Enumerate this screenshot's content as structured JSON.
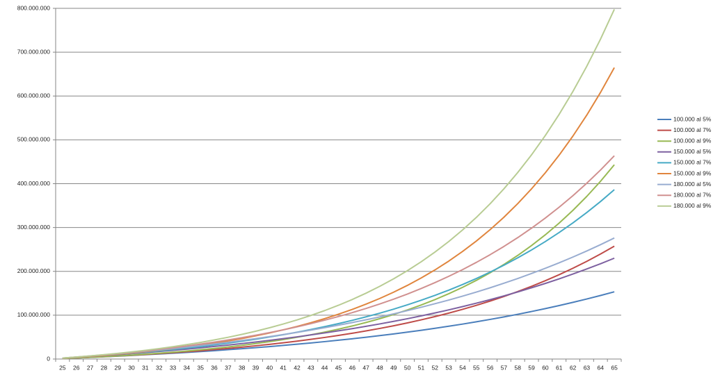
{
  "chart_data": {
    "type": "line",
    "categories": [
      25,
      26,
      27,
      28,
      29,
      30,
      31,
      32,
      33,
      34,
      35,
      36,
      37,
      38,
      39,
      40,
      41,
      42,
      43,
      44,
      45,
      46,
      47,
      48,
      49,
      50,
      51,
      52,
      53,
      54,
      55,
      56,
      57,
      58,
      59,
      60,
      61,
      62,
      63,
      64,
      65
    ],
    "ylim": [
      0,
      800000000
    ],
    "yticks": [
      0,
      {
        "value": 100000000,
        "label": "100.000.000"
      },
      {
        "value": 200000000,
        "label": "200.000.000"
      },
      {
        "value": 300000000,
        "label": "300.000.000"
      },
      {
        "value": 400000000,
        "label": "400.000.000"
      },
      {
        "value": 500000000,
        "label": "500.000.000"
      },
      {
        "value": 600000000,
        "label": "600.000.000"
      },
      {
        "value": 700000000,
        "label": "700.000.000"
      },
      {
        "value": 800000000,
        "label": "800.000.000"
      }
    ],
    "grid": true,
    "legend": "right",
    "series": [
      {
        "name": "100.000 al 5%",
        "color": "#4a7ebb",
        "values": [
          1200000.0,
          2500000.0,
          3800000.0,
          5200000.0,
          6600000.0,
          8200000.0,
          9800000.0,
          11500000.0,
          13200000.0,
          15100000.0,
          17000000.0,
          19100000.0,
          21300000.0,
          23500000.0,
          25900000.0,
          28400000.0,
          31000000.0,
          33800000.0,
          36600000.0,
          39700000.0,
          42900000.0,
          46200000.0,
          49700000.0,
          53400000.0,
          57300000.0,
          61300000.0,
          65600000.0,
          70100000.0,
          74800000.0,
          79700000.0,
          84900000.0,
          90400000.0,
          96100000.0,
          102100000.0,
          108400000.0,
          115000000.0,
          122000000.0,
          129300000.0,
          136900000.0,
          145000000.0,
          153400000.0
        ]
      },
      {
        "name": "100.000 al 7%",
        "color": "#be4b48",
        "values": [
          1200000.0,
          2500000.0,
          3900000.0,
          5300000.0,
          6900000.0,
          8600000.0,
          10400000.0,
          12300000.0,
          14400000.0,
          16600000.0,
          18900000.0,
          21500000.0,
          24200000.0,
          27100000.0,
          30200000.0,
          33500000.0,
          37000000.0,
          40800000.0,
          44900000.0,
          49200000.0,
          53800000.0,
          58800000.0,
          64100000.0,
          69800000.0,
          75900000.0,
          82400000.0,
          89400000.0,
          96800000.0,
          104800000.0,
          113400000.0,
          122500000.0,
          132300000.0,
          142700000.0,
          153900000.0,
          165900000.0,
          178700000.0,
          192400000.0,
          207100000.0,
          222800000.0,
          239600000.0,
          257500000.0
        ]
      },
      {
        "name": "100.000 al 9%",
        "color": "#98b954",
        "values": [
          1200000.0,
          2500000.0,
          3900000.0,
          5500000.0,
          7200000.0,
          9000000.0,
          11000000.0,
          13200000.0,
          15600000.0,
          18200000.0,
          21100000.0,
          24200000.0,
          27500000.0,
          31200000.0,
          35200000.0,
          39600000.0,
          44400000.0,
          49600000.0,
          55200000.0,
          61400000.0,
          68100000.0,
          75400000.0,
          83400000.0,
          92100000.0,
          101600000.0,
          112000000.0,
          123300000.0,
          135600000.0,
          149000000.0,
          163600000.0,
          179500000.0,
          196800000.0,
          215800000.0,
          236400000.0,
          258900000.0,
          283400000.0,
          310100000.0,
          339200000.0,
          370900000.0,
          405500000.0,
          443200000.0
        ]
      },
      {
        "name": "150.000 al 5%",
        "color": "#7d60a0",
        "values": [
          1800000.0,
          3700000.0,
          5700000.0,
          7800000.0,
          9900000.0,
          12200000.0,
          14700000.0,
          17200000.0,
          19800000.0,
          22600000.0,
          25600000.0,
          28700000.0,
          31900000.0,
          35300000.0,
          38800000.0,
          42600000.0,
          46500000.0,
          50600000.0,
          55000000.0,
          59500000.0,
          64300000.0,
          69300000.0,
          74600000.0,
          80100000.0,
          85900000.0,
          92000000.0,
          98400000.0,
          105100000.0,
          112200000.0,
          119600000.0,
          127400000.0,
          135500000.0,
          144100000.0,
          153100000.0,
          162600000.0,
          172500000.0,
          182900000.0,
          193900000.0,
          205400000.0,
          217400000.0,
          230100000.0
        ]
      },
      {
        "name": "150.000 al 7%",
        "color": "#46aac5",
        "values": [
          1800000.0,
          3700000.0,
          5800000.0,
          8000000.0,
          10400000.0,
          12900000.0,
          15600000.0,
          18500000.0,
          21600000.0,
          24900000.0,
          28400000.0,
          32200000.0,
          36300000.0,
          40600000.0,
          45200000.0,
          50200000.0,
          55500000.0,
          61200000.0,
          67300000.0,
          73800000.0,
          80800000.0,
          88200000.0,
          96200000.0,
          104700000.0,
          113800000.0,
          123600000.0,
          134100000.0,
          145300000.0,
          157200000.0,
          170000000.0,
          183700000.0,
          198400000.0,
          214100000.0,
          230900000.0,
          248800000.0,
          268000000.0,
          288600000.0,
          310600000.0,
          334200000.0,
          359300000.0,
          386300000.0
        ]
      },
      {
        "name": "150.000 al 9%",
        "color": "#e0853d",
        "values": [
          1800000.0,
          3800000.0,
          5900000.0,
          8200000.0,
          10800000.0,
          13500000.0,
          16600000.0,
          19900000.0,
          23400000.0,
          27300000.0,
          31600000.0,
          36300000.0,
          41300000.0,
          46800000.0,
          52900000.0,
          59400000.0,
          66600000.0,
          74300000.0,
          82800000.0,
          92100000.0,
          102200000.0,
          113200000.0,
          125200000.0,
          138200000.0,
          152500000.0,
          168000000.0,
          184900000.0,
          203300000.0,
          223400000.0,
          245400000.0,
          269200000.0,
          295300000.0,
          323600000.0,
          354600000.0,
          388300000.0,
          425000000.0,
          465100000.0,
          508700000.0,
          556300000.0,
          608200000.0,
          664700000.0
        ]
      },
      {
        "name": "180.000 al 5%",
        "color": "#98acd0",
        "values": [
          2200000.0,
          4400000.0,
          6800000.0,
          9300000.0,
          11900000.0,
          14700000.0,
          17600000.0,
          20600000.0,
          23800000.0,
          27200000.0,
          30700000.0,
          34400000.0,
          38300000.0,
          42300000.0,
          46600000.0,
          51100000.0,
          55800000.0,
          60800000.0,
          66000000.0,
          71400000.0,
          77200000.0,
          83200000.0,
          89500000.0,
          96100000.0,
          103100000.0,
          110400000.0,
          118100000.0,
          126200000.0,
          134600000.0,
          143500000.0,
          152800000.0,
          162600000.0,
          172900000.0,
          183700000.0,
          195100000.0,
          207000000.0,
          219500000.0,
          232700000.0,
          246400000.0,
          260900000.0,
          276100000.0
        ]
      },
      {
        "name": "180.000 al 7%",
        "color": "#d0908f",
        "values": [
          2200000.0,
          4500000.0,
          6900000.0,
          9600000.0,
          12400000.0,
          15500000.0,
          18700000.0,
          22200000.0,
          25900000.0,
          29800000.0,
          34100000.0,
          38600000.0,
          43500000.0,
          48700000.0,
          54300000.0,
          60200000.0,
          66600000.0,
          73400000.0,
          80700000.0,
          88600000.0,
          96900000.0,
          105900000.0,
          115400000.0,
          125700000.0,
          136600000.0,
          148300000.0,
          160900000.0,
          174300000.0,
          188700000.0,
          204000000.0,
          220500000.0,
          238100000.0,
          256900000.0,
          277000000.0,
          298600000.0,
          321700000.0,
          346300000.0,
          372700000.0,
          401000000.0,
          431200000.0,
          463600000.0
        ]
      },
      {
        "name": "180.000 al 9%",
        "color": "#b8cc93",
        "values": [
          2200000.0,
          4500000.0,
          7100000.0,
          9900000.0,
          12900000.0,
          16300000.0,
          19900000.0,
          23800000.0,
          28100000.0,
          32800000.0,
          37900000.0,
          43500000.0,
          49600000.0,
          56200000.0,
          63400000.0,
          71300000.0,
          79900000.0,
          89200000.0,
          99400000.0,
          110500000.0,
          122600000.0,
          135800000.0,
          150200000.0,
          165900000.0,
          183000000.0,
          201600000.0,
          221900000.0,
          244000000.0,
          268100000.0,
          294400000.0,
          323100000.0,
          354300000.0,
          388400000.0,
          425500000.0,
          465900000.0,
          510000000.0,
          558100000.0,
          610500000.0,
          667600000.0,
          729800000.0,
          797700000.0
        ]
      }
    ]
  }
}
